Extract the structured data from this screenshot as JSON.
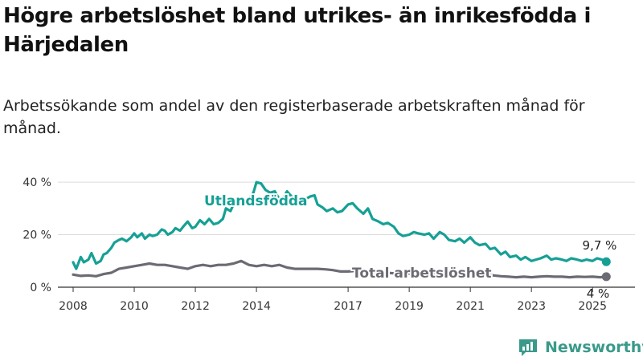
{
  "title": "Högre arbetslöshet bland utrikes- än inrikesfödda i Härjedalen",
  "subtitle": "Arbetssökande som andel av den registerbaserade arbetskraften månad för månad.",
  "brand": {
    "name": "Newsworthy",
    "icon": "bar-chart-logo-icon",
    "color": "#3a9a8a"
  },
  "colors": {
    "utlandsfodda": "#16a095",
    "total": "#6b6b73",
    "grid": "#dcdcdc",
    "axis": "#333333"
  },
  "chart_data": {
    "type": "line",
    "title": "Högre arbetslöshet bland utrikes- än inrikesfödda i Härjedalen",
    "subtitle": "Arbetssökande som andel av den registerbaserade arbetskraften månad för månad.",
    "xlabel": "",
    "ylabel": "",
    "xlim": [
      2007.5,
      2025.6
    ],
    "ylim": [
      0,
      44
    ],
    "grid": true,
    "y_ticks": [
      0,
      20,
      40
    ],
    "y_tick_labels": [
      "0 %",
      "20 %",
      "40 %"
    ],
    "x_ticks": [
      2008,
      2010,
      2012,
      2014,
      2017,
      2019,
      2021,
      2023,
      2025
    ],
    "x_tick_labels": [
      "2008",
      "2010",
      "2012",
      "2014",
      "2017",
      "2019",
      "2021",
      "2023",
      "2025"
    ],
    "series": [
      {
        "name": "Utlandsfödda",
        "end_label": "9,7 %",
        "x": [
          2008.0,
          2008.1,
          2008.25,
          2008.35,
          2008.5,
          2008.6,
          2008.75,
          2008.9,
          2009.0,
          2009.1,
          2009.25,
          2009.35,
          2009.5,
          2009.6,
          2009.75,
          2009.9,
          2010.0,
          2010.1,
          2010.25,
          2010.35,
          2010.5,
          2010.6,
          2010.75,
          2010.9,
          2011.0,
          2011.1,
          2011.25,
          2011.35,
          2011.5,
          2011.6,
          2011.75,
          2011.9,
          2012.0,
          2012.15,
          2012.3,
          2012.45,
          2012.6,
          2012.75,
          2012.9,
          2013.0,
          2013.15,
          2013.3,
          2013.45,
          2013.6,
          2013.75,
          2013.9,
          2014.0,
          2014.15,
          2014.3,
          2014.45,
          2014.6,
          2014.75,
          2014.9,
          2015.0,
          2015.15,
          2015.3,
          2015.45,
          2015.6,
          2015.75,
          2015.9,
          2016.0,
          2016.15,
          2016.3,
          2016.5,
          2016.65,
          2016.8,
          2017.0,
          2017.15,
          2017.3,
          2017.5,
          2017.65,
          2017.8,
          2018.0,
          2018.15,
          2018.3,
          2018.5,
          2018.65,
          2018.8,
          2019.0,
          2019.15,
          2019.3,
          2019.5,
          2019.65,
          2019.8,
          2020.0,
          2020.15,
          2020.3,
          2020.5,
          2020.65,
          2020.8,
          2021.0,
          2021.15,
          2021.3,
          2021.5,
          2021.65,
          2021.8,
          2022.0,
          2022.15,
          2022.3,
          2022.5,
          2022.65,
          2022.8,
          2023.0,
          2023.15,
          2023.3,
          2023.5,
          2023.65,
          2023.8,
          2024.0,
          2024.15,
          2024.3,
          2024.5,
          2024.65,
          2024.8,
          2025.0,
          2025.15,
          2025.3,
          2025.45
        ],
        "y": [
          9.5,
          7.0,
          11.5,
          9.5,
          10.5,
          13.0,
          9.0,
          10.0,
          12.5,
          13.0,
          15.0,
          17.0,
          18.0,
          18.5,
          17.5,
          19.0,
          20.5,
          19.0,
          20.5,
          18.5,
          20.0,
          19.5,
          20.0,
          22.0,
          21.5,
          20.0,
          21.0,
          22.5,
          21.5,
          23.0,
          25.0,
          22.5,
          23.0,
          25.5,
          24.0,
          26.0,
          24.0,
          24.5,
          26.0,
          30.0,
          29.0,
          33.0,
          31.0,
          32.0,
          33.5,
          36.0,
          40.0,
          39.5,
          37.0,
          36.0,
          36.5,
          33.5,
          34.5,
          36.5,
          34.5,
          32.0,
          33.0,
          33.5,
          34.5,
          35.0,
          31.5,
          30.5,
          29.0,
          30.0,
          28.5,
          29.0,
          31.5,
          32.0,
          30.0,
          28.0,
          30.0,
          26.0,
          25.0,
          24.0,
          24.5,
          23.0,
          20.5,
          19.5,
          20.0,
          21.0,
          20.5,
          20.0,
          20.5,
          18.5,
          21.0,
          20.0,
          18.0,
          17.5,
          18.5,
          17.0,
          19.0,
          17.0,
          16.0,
          16.5,
          14.5,
          15.0,
          12.5,
          13.5,
          11.5,
          12.0,
          10.5,
          11.5,
          10.0,
          10.5,
          11.0,
          12.0,
          10.5,
          11.0,
          10.5,
          10.0,
          11.0,
          10.5,
          10.0,
          10.5,
          10.0,
          11.0,
          10.5,
          9.7
        ]
      },
      {
        "name": "Total arbetslöshet",
        "end_label": "4 %",
        "x": [
          2008.0,
          2008.25,
          2008.5,
          2008.75,
          2009.0,
          2009.25,
          2009.5,
          2009.75,
          2010.0,
          2010.25,
          2010.5,
          2010.75,
          2011.0,
          2011.25,
          2011.5,
          2011.75,
          2012.0,
          2012.25,
          2012.5,
          2012.75,
          2013.0,
          2013.25,
          2013.5,
          2013.75,
          2014.0,
          2014.25,
          2014.5,
          2014.75,
          2015.0,
          2015.25,
          2015.5,
          2015.75,
          2016.0,
          2016.25,
          2016.5,
          2016.75,
          2017.0,
          2017.25,
          2017.5,
          2017.75,
          2018.0,
          2018.25,
          2018.5,
          2018.75,
          2019.0,
          2019.25,
          2019.5,
          2019.75,
          2020.0,
          2020.25,
          2020.5,
          2020.75,
          2021.0,
          2021.25,
          2021.5,
          2021.75,
          2022.0,
          2022.25,
          2022.5,
          2022.75,
          2023.0,
          2023.25,
          2023.5,
          2023.75,
          2024.0,
          2024.25,
          2024.5,
          2024.75,
          2025.0,
          2025.25,
          2025.45
        ],
        "y": [
          4.8,
          4.3,
          4.5,
          4.2,
          5.0,
          5.5,
          7.0,
          7.5,
          8.0,
          8.5,
          9.0,
          8.5,
          8.5,
          8.0,
          7.5,
          7.0,
          8.0,
          8.5,
          8.0,
          8.5,
          8.5,
          9.0,
          10.0,
          8.5,
          8.0,
          8.5,
          8.0,
          8.5,
          7.5,
          7.0,
          7.0,
          7.0,
          7.0,
          6.8,
          6.5,
          6.0,
          6.0,
          6.2,
          6.0,
          5.8,
          5.5,
          5.5,
          5.3,
          5.0,
          5.2,
          5.0,
          5.0,
          4.8,
          5.5,
          5.8,
          5.5,
          5.8,
          5.5,
          5.0,
          4.8,
          4.5,
          4.2,
          4.0,
          3.8,
          4.0,
          3.8,
          4.0,
          4.2,
          4.0,
          4.0,
          3.8,
          4.0,
          3.9,
          4.0,
          3.8,
          4.0
        ]
      }
    ]
  }
}
